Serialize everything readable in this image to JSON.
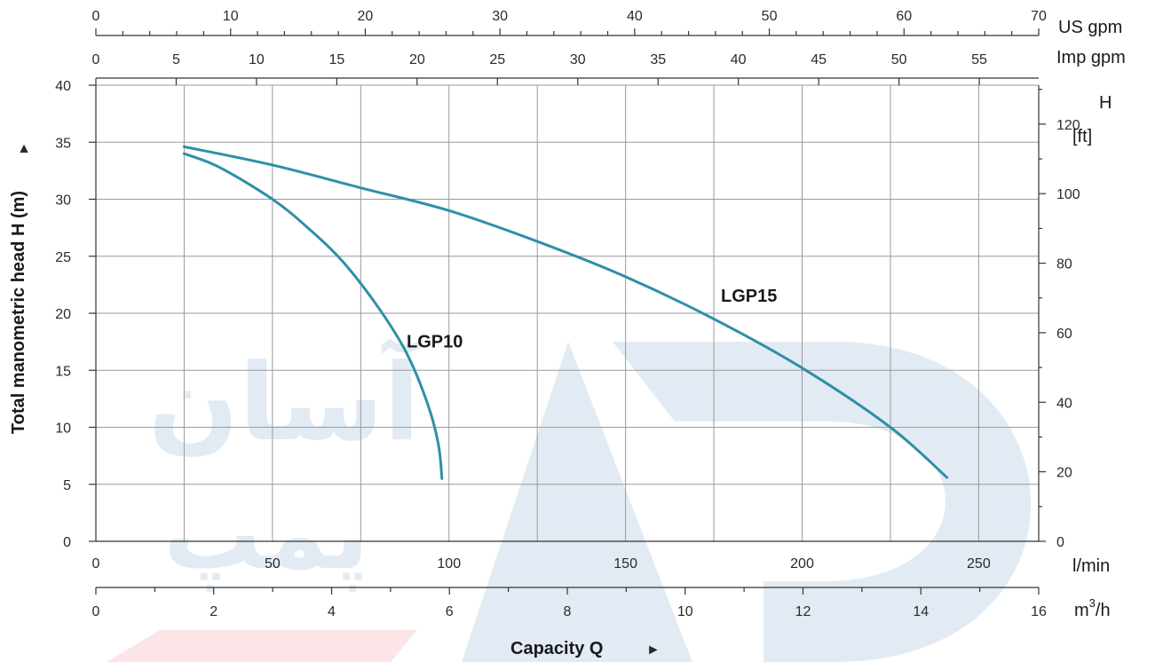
{
  "colors": {
    "curve": "#2f8fa6",
    "grid": "#9a9a9a",
    "axis": "#333333",
    "watermark_blue": "#4a7fb0",
    "watermark_red": "#e0303a"
  },
  "chart_data": {
    "type": "line",
    "title": "",
    "xlabel": "Capacity Q",
    "ylabel": "Total manometric head H (m)",
    "xlim": [
      0,
      267
    ],
    "ylim": [
      0,
      40
    ],
    "x_unit": "l/min",
    "y_unit": "m",
    "grid": true,
    "x_ticks": [
      0,
      50,
      100,
      150,
      200,
      250
    ],
    "y_ticks": [
      0,
      5,
      10,
      15,
      20,
      25,
      30,
      35,
      40
    ],
    "secondary_axes": {
      "us_gpm": {
        "label": "US gpm",
        "range": [
          0,
          70
        ],
        "ticks": [
          0,
          10,
          20,
          30,
          40,
          50,
          60,
          70
        ]
      },
      "imp_gpm": {
        "label": "Imp gpm",
        "range": [
          0,
          58.7
        ],
        "ticks": [
          0,
          5,
          10,
          15,
          20,
          25,
          30,
          35,
          40,
          45,
          50,
          55
        ]
      },
      "m3h": {
        "label": "m³/h",
        "range": [
          0,
          16
        ],
        "ticks": [
          0,
          2,
          4,
          6,
          8,
          10,
          12,
          14,
          16
        ]
      },
      "ft": {
        "label": "H",
        "unit": "[ft]",
        "range": [
          0,
          131.2
        ],
        "ticks": [
          0,
          20,
          40,
          60,
          80,
          100,
          120
        ]
      }
    },
    "series": [
      {
        "name": "LGP10",
        "x": [
          25,
          35,
          50,
          60,
          70,
          80,
          88,
          94,
          97,
          98
        ],
        "y": [
          34,
          32.8,
          30,
          27.5,
          24.5,
          20.5,
          16.5,
          12,
          8.5,
          5.5
        ]
      },
      {
        "name": "LGP15",
        "x": [
          25,
          50,
          75,
          100,
          125,
          150,
          175,
          200,
          225,
          241
        ],
        "y": [
          34.6,
          33,
          31,
          29,
          26.3,
          23.2,
          19.5,
          15.2,
          10,
          5.6
        ]
      }
    ]
  },
  "labels": {
    "us_gpm_unit": "US gpm",
    "imp_gpm_unit": "Imp gpm",
    "lmin_unit": "l/min",
    "m3h_unit_base": "m",
    "m3h_unit_sup": "3",
    "m3h_unit_tail": "/h",
    "h_ft_title": "H",
    "h_ft_unit": "[ft]",
    "capacity": "Capacity Q",
    "capacity_arrow": "►",
    "ylabel": "Total manometric head H (m)",
    "ylabel_arrow": "▲",
    "watermark_top": "آسان",
    "watermark_bottom": "پمپ"
  }
}
